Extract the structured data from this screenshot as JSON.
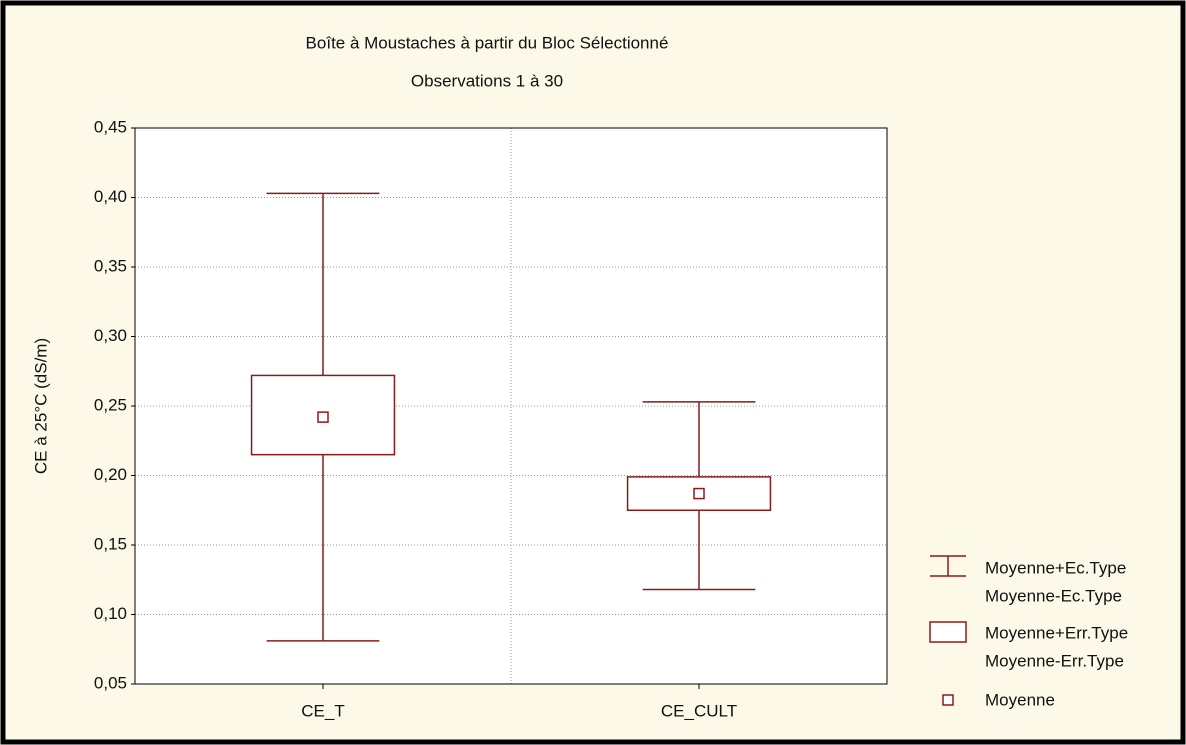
{
  "chart_data": {
    "type": "box",
    "title": "Boîte à Moustaches à partir du Bloc Sélectionné",
    "subtitle": "Observations 1 à 30",
    "y_label": "CE à 25°C (dS/m)",
    "categories": [
      "CE_T",
      "CE_CULT"
    ],
    "mean": [
      0.242,
      0.187
    ],
    "mean_plus_se": [
      0.272,
      0.199
    ],
    "mean_minus_se": [
      0.215,
      0.175
    ],
    "mean_plus_sd": [
      0.403,
      0.253
    ],
    "mean_minus_sd": [
      0.081,
      0.118
    ],
    "color": "#8b1a1a",
    "ylim": [
      0.05,
      0.45
    ],
    "yticks": [
      {
        "value": 0.05,
        "label": "0,05"
      },
      {
        "value": 0.1,
        "label": "0,10"
      },
      {
        "value": 0.15,
        "label": "0,15"
      },
      {
        "value": 0.2,
        "label": "0,20"
      },
      {
        "value": 0.25,
        "label": "0,25"
      },
      {
        "value": 0.3,
        "label": "0,30"
      },
      {
        "value": 0.35,
        "label": "0,35"
      },
      {
        "value": 0.4,
        "label": "0,40"
      },
      {
        "value": 0.45,
        "label": "0,45"
      }
    ],
    "grid": true,
    "legend": {
      "whisker": [
        "Moyenne+Ec.Type",
        "Moyenne-Ec.Type"
      ],
      "box": [
        "Moyenne+Err.Type",
        "Moyenne-Err.Type"
      ],
      "mean": "Moyenne"
    }
  }
}
